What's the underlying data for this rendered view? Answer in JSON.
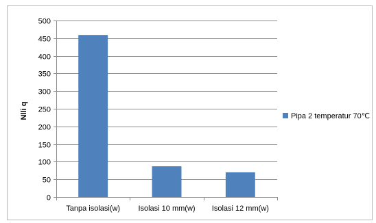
{
  "chart_data": {
    "type": "bar",
    "categories": [
      "Tanpa isolasi(w)",
      "Isolasi 10 mm(w)",
      "Isolasi 12 mm(w)"
    ],
    "series": [
      {
        "name": "Pipa 2 temperatur 70℃",
        "values": [
          459,
          87,
          70
        ],
        "color": "#4f81bd"
      }
    ],
    "ylabel": "Nlli q",
    "xlabel": "",
    "ylim": [
      0,
      500
    ],
    "yticks": [
      0,
      50,
      100,
      150,
      200,
      250,
      300,
      350,
      400,
      450,
      500
    ],
    "grid": true,
    "legend_position": "right"
  }
}
